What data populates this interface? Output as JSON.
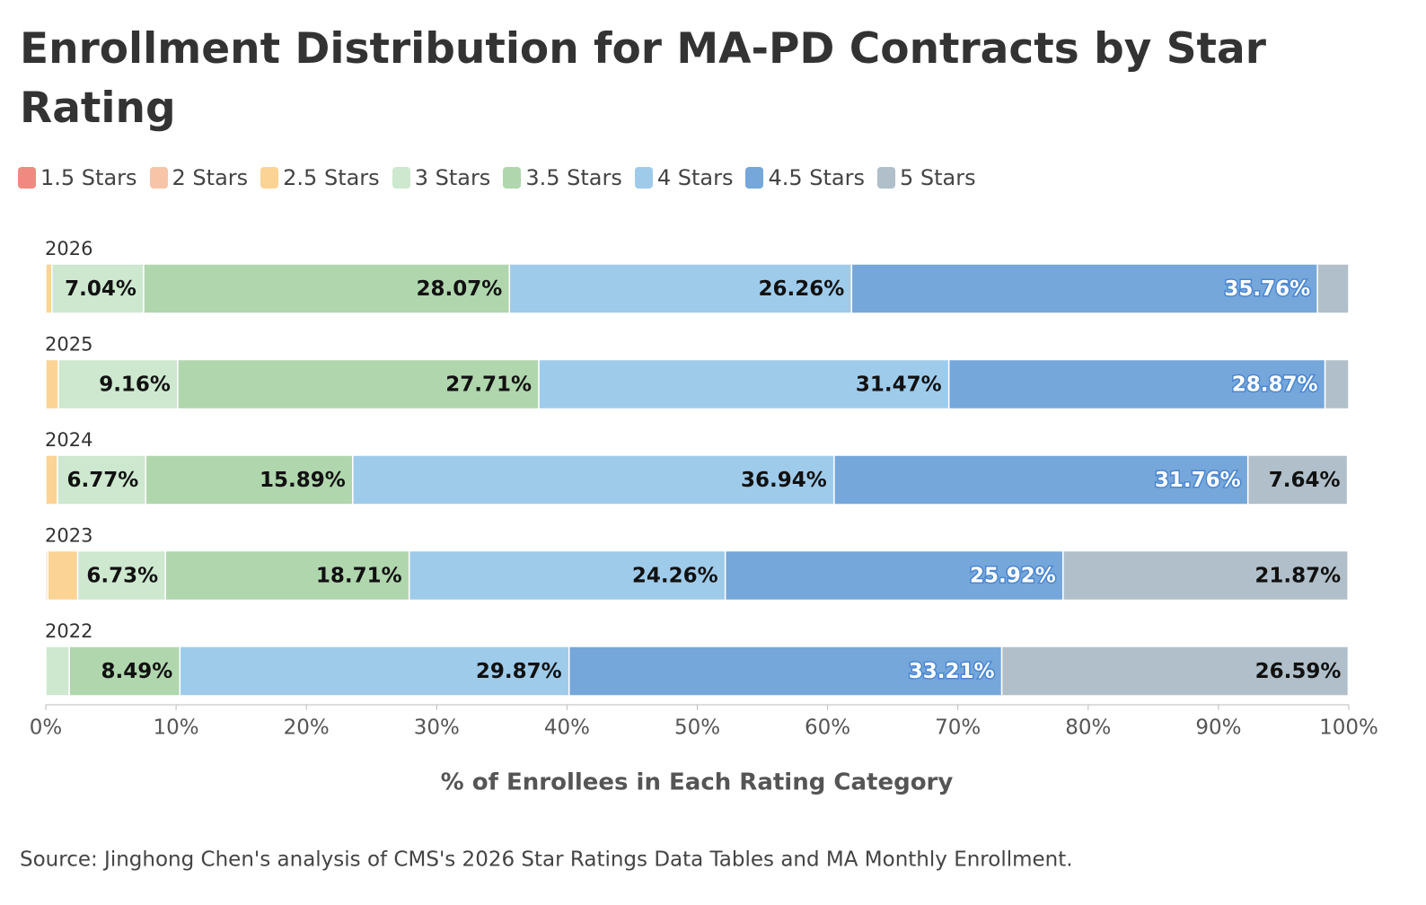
{
  "chart_data": {
    "type": "stacked-bar",
    "title": "Enrollment Distribution for MA-PD Contracts by Star Rating",
    "categories": [
      "2026",
      "2025",
      "2024",
      "2023",
      "2022"
    ],
    "series": [
      {
        "name": "1.5 Stars",
        "color": "#f08a80",
        "values": [
          0,
          0,
          0,
          0,
          0
        ],
        "value_labels": [
          null,
          null,
          null,
          null,
          null
        ]
      },
      {
        "name": "2 Stars",
        "color": "#f7c4a8",
        "values": [
          0,
          0,
          0,
          0.15,
          0
        ],
        "value_labels": [
          null,
          null,
          null,
          null,
          null
        ]
      },
      {
        "name": "2.5 Stars",
        "color": "#fbd394",
        "values": [
          0.47,
          0.97,
          0.9,
          2.3,
          0
        ],
        "value_labels": [
          null,
          null,
          null,
          null,
          null
        ]
      },
      {
        "name": "3 Stars",
        "color": "#cde8cf",
        "values": [
          7.04,
          9.16,
          6.77,
          6.73,
          1.8
        ],
        "value_labels": [
          "7.04%",
          "9.16%",
          "6.77%",
          "6.73%",
          null
        ]
      },
      {
        "name": "3.5 Stars",
        "color": "#b0d6ad",
        "values": [
          28.07,
          27.71,
          15.89,
          18.71,
          8.49
        ],
        "value_labels": [
          "28.07%",
          "27.71%",
          "15.89%",
          "18.71%",
          "8.49%"
        ]
      },
      {
        "name": "4 Stars",
        "color": "#9fcbeb",
        "values": [
          26.26,
          31.47,
          36.94,
          24.26,
          29.87
        ],
        "value_labels": [
          "26.26%",
          "31.47%",
          "36.94%",
          "24.26%",
          "29.87%"
        ]
      },
      {
        "name": "4.5 Stars",
        "color": "#75a7db",
        "label_color": "#ffffff",
        "values": [
          35.76,
          28.87,
          31.76,
          25.92,
          33.21
        ],
        "value_labels": [
          "35.76%",
          "28.87%",
          "31.76%",
          "25.92%",
          "33.21%"
        ]
      },
      {
        "name": "5 Stars",
        "color": "#b0bfc9",
        "values": [
          2.4,
          1.82,
          7.64,
          21.87,
          26.59
        ],
        "value_labels": [
          null,
          null,
          "7.64%",
          "21.87%",
          "26.59%"
        ]
      }
    ],
    "xlim": [
      0,
      100
    ],
    "xticks": [
      {
        "value": 0,
        "label": "0%"
      },
      {
        "value": 10,
        "label": "10%"
      },
      {
        "value": 20,
        "label": "20%"
      },
      {
        "value": 30,
        "label": "30%"
      },
      {
        "value": 40,
        "label": "40%"
      },
      {
        "value": 50,
        "label": "50%"
      },
      {
        "value": 60,
        "label": "60%"
      },
      {
        "value": 70,
        "label": "70%"
      },
      {
        "value": 80,
        "label": "80%"
      },
      {
        "value": 90,
        "label": "90%"
      },
      {
        "value": 100,
        "label": "100%"
      }
    ],
    "xlabel": "% of Enrollees in Each Rating Category",
    "source": "Source: Jinghong Chen's analysis of CMS's 2026 Star Ratings Data Tables and MA Monthly Enrollment."
  }
}
